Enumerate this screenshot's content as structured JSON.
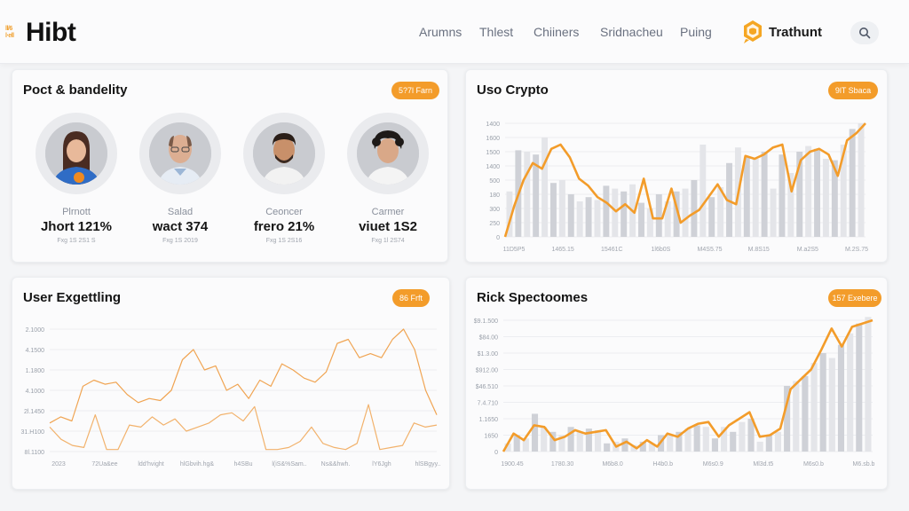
{
  "header": {
    "logo_mark_top": "ll/6",
    "logo_mark_bottom": "l·ell",
    "logo_text": "Hibt",
    "nav": [
      "Arumns",
      "Thlest",
      "Chiiners",
      "Sridnacheu",
      "Puing"
    ],
    "brand_name": "Trathunt",
    "brand_icon": "hexagon-shield-icon",
    "search_icon": "search-icon",
    "accent_color": "#f39c2a"
  },
  "cards": {
    "people": {
      "title": "Poct & bandelity",
      "pill": "5?7l Farn",
      "persons": [
        {
          "role": "Plrnott",
          "value": "Jhort 121%",
          "date": "Fxg 1S 2S1 S",
          "avatar": "woman-long-hair"
        },
        {
          "role": "Salad",
          "value": "wact 374",
          "date": "Fxg 1S 2019",
          "avatar": "bald-man-glasses"
        },
        {
          "role": "Ceoncer",
          "value": "frero 21%",
          "date": "Fxg 1S 2S16",
          "avatar": "man-beard"
        },
        {
          "role": "Carmer",
          "value": "viuet 1S2",
          "date": "Fxg 1l 2S74",
          "avatar": "curly-hair-person"
        }
      ]
    },
    "crypto": {
      "title": "Uso Crypto",
      "pill": "9lT Sbaca"
    },
    "engagement": {
      "title": "User Exgettling",
      "pill": "86 Frft"
    },
    "risk": {
      "title": "Rick Spectoomes",
      "pill": "157 Exebere"
    }
  },
  "chart_data": [
    {
      "type": "bar+line",
      "title": "Uso Crypto",
      "yticks": [
        "0",
        "250",
        "300",
        "180",
        "500",
        "1400",
        "1500",
        "1600",
        "1400"
      ],
      "xticks": [
        "11D5P5",
        "1465.15",
        "15461C",
        "1l6b0S",
        "M4S5.75",
        "M.8S15",
        "M.a2S5",
        "M.2S.75"
      ],
      "ylim": [
        0,
        8
      ],
      "bars": [
        3.2,
        6.1,
        6.0,
        5.8,
        7.0,
        3.8,
        4.0,
        3.0,
        2.5,
        2.8,
        2.6,
        3.6,
        3.4,
        3.2,
        3.7,
        2.4,
        2.0,
        3.0,
        2.5,
        3.2,
        3.4,
        4.0,
        6.5,
        2.8,
        3.5,
        5.2,
        6.3,
        5.6,
        5.5,
        6.0,
        3.4,
        5.8,
        4.5,
        6.0,
        6.4,
        6.2,
        5.5,
        5.4,
        6.5,
        7.6,
        8.0
      ],
      "line": [
        0,
        2.2,
        4.0,
        5.2,
        4.8,
        6.2,
        6.5,
        5.6,
        4.1,
        3.6,
        2.8,
        2.4,
        1.8,
        2.3,
        1.7,
        4.1,
        1.3,
        1.3,
        3.4,
        1.0,
        1.5,
        1.9,
        2.8,
        3.7,
        2.6,
        2.3,
        5.7,
        5.5,
        5.8,
        6.3,
        6.5,
        3.2,
        5.4,
        6.0,
        6.2,
        5.8,
        4.3,
        6.8,
        7.3,
        8.0
      ],
      "line_color": "#f39c2a",
      "bar_color": "#d5d7dc"
    },
    {
      "type": "line",
      "title": "User Exgettling",
      "yticks": [
        "8l.1100",
        "31.H100",
        "2l.1450",
        "4.1000",
        "1.1800",
        "4.1500",
        "2.1000"
      ],
      "xticks": [
        "2023",
        "72Ua&ee",
        "ldd'hvight",
        "hlGbvih.hg&",
        "h4SBu",
        "l(iS&%Sam..",
        "Ns&&hwh.",
        "lY6Jgh",
        "hlSBgyy.."
      ],
      "ylim": [
        0,
        6
      ],
      "series": [
        {
          "name": "primary",
          "values": [
            1.4,
            1.7,
            1.5,
            3.2,
            3.5,
            3.3,
            3.4,
            2.8,
            2.4,
            2.6,
            2.5,
            3.0,
            4.5,
            5.0,
            4.0,
            4.2,
            3.0,
            3.3,
            2.6,
            3.5,
            3.2,
            4.3,
            4.0,
            3.6,
            3.4,
            3.9,
            5.3,
            5.5,
            4.6,
            4.8,
            4.6,
            5.5,
            6.0,
            5.0,
            3.0,
            1.8
          ]
        },
        {
          "name": "secondary",
          "values": [
            1.2,
            0.6,
            0.3,
            0.2,
            1.8,
            0.1,
            0.1,
            1.3,
            1.2,
            1.7,
            1.3,
            1.6,
            1.0,
            1.2,
            1.4,
            1.8,
            1.9,
            1.5,
            2.2,
            0.1,
            0.1,
            0.2,
            0.5,
            1.2,
            0.4,
            0.2,
            0.1,
            0.4,
            2.3,
            0.1,
            0.2,
            0.3,
            1.4,
            1.2,
            1.3
          ]
        }
      ],
      "line_color": "#f0a452"
    },
    {
      "type": "bar+line",
      "title": "Rick Spectoomes",
      "yticks": [
        "0",
        "1650",
        "1.1650",
        "7.4.710",
        "$46.510",
        "$912.00",
        "$1.3.00",
        "$84.00",
        "$9.1.500"
      ],
      "xticks": [
        "1900.45",
        "1780.30",
        "M6b8.0",
        "H4b0.b",
        "M6s0.9",
        "Ml3d.t5",
        "M6s0.b",
        "M6.sb.b"
      ],
      "ylim": [
        0,
        8
      ],
      "bars": [
        0.5,
        1.0,
        0.8,
        2.3,
        1.5,
        1.2,
        1.0,
        1.5,
        1.2,
        1.4,
        1.3,
        0.5,
        0.6,
        0.8,
        0.4,
        0.6,
        0.5,
        1.0,
        1.0,
        1.2,
        1.4,
        1.6,
        1.5,
        0.8,
        1.5,
        1.2,
        1.8,
        2.0,
        0.6,
        1.0,
        1.2,
        4.0,
        4.3,
        4.6,
        5.4,
        6.0,
        5.7,
        6.5,
        7.2,
        7.8,
        8.2
      ],
      "line": [
        0,
        1.1,
        0.7,
        1.6,
        1.5,
        0.7,
        0.9,
        1.3,
        1.1,
        1.2,
        1.3,
        0.3,
        0.6,
        0.2,
        0.7,
        0.3,
        1.1,
        0.9,
        1.4,
        1.7,
        1.8,
        0.9,
        1.6,
        2.0,
        2.4,
        0.9,
        1.0,
        1.4,
        3.8,
        4.4,
        5.0,
        6.2,
        7.5,
        6.4,
        7.6,
        7.8,
        8.0
      ],
      "line_color": "#f39c2a",
      "bar_color": "#d5d7dc"
    }
  ]
}
